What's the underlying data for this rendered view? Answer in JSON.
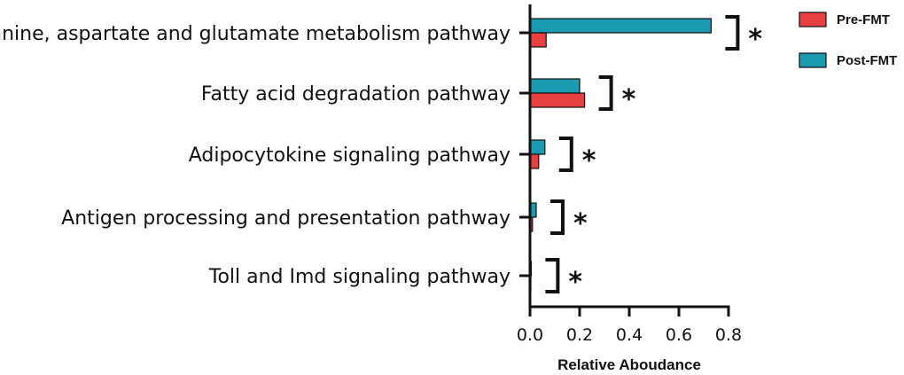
{
  "chart_data": {
    "type": "bar",
    "orientation": "horizontal",
    "title": "",
    "xlabel": "Relative Aboudance",
    "ylabel": "",
    "xlim": [
      0,
      0.8
    ],
    "xticks": [
      "0.0",
      "0.2",
      "0.4",
      "0.6",
      "0.8"
    ],
    "categories": [
      "Alanine, aspartate and glutamate metabolism pathway",
      "Fatty acid degradation pathway",
      "Adipocytokine signaling pathway",
      "Antigen processing and presentation pathway",
      "Toll and Imd signaling pathway"
    ],
    "series": [
      {
        "name": "Post-FMT",
        "color": "#1a9bb0",
        "values": [
          0.73,
          0.2,
          0.06,
          0.025,
          0.005
        ]
      },
      {
        "name": "Pre-FMT",
        "color": "#e84040",
        "values": [
          0.065,
          0.22,
          0.035,
          0.01,
          0.003
        ]
      }
    ],
    "significance": [
      "*",
      "*",
      "*",
      "*",
      "*"
    ],
    "legend": [
      {
        "name": "Pre-FMT",
        "color": "#e84040"
      },
      {
        "name": "Post-FMT",
        "color": "#1a9bb0"
      }
    ],
    "legend_position": "top-right",
    "grid": false
  }
}
